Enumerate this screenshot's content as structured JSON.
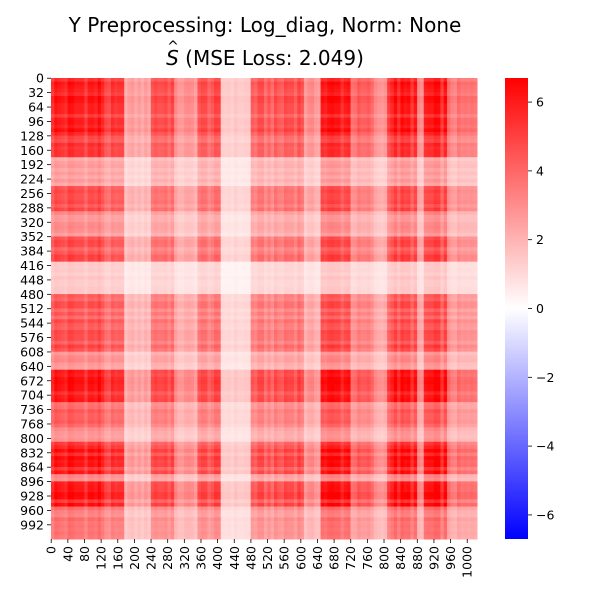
{
  "chart_data": {
    "type": "heatmap",
    "title": "Y Preprocessing: Log_diag, Norm: None",
    "subtitle_symbol": "S",
    "subtitle_rest": " (MSE Loss: 2.049)",
    "n": 1024,
    "y_ticks": [
      "0",
      "32",
      "64",
      "96",
      "128",
      "160",
      "192",
      "224",
      "256",
      "288",
      "320",
      "352",
      "384",
      "416",
      "448",
      "480",
      "512",
      "544",
      "576",
      "608",
      "640",
      "672",
      "704",
      "736",
      "768",
      "800",
      "832",
      "864",
      "896",
      "928",
      "960",
      "992"
    ],
    "x_ticks": [
      "0",
      "40",
      "80",
      "120",
      "160",
      "200",
      "240",
      "280",
      "320",
      "360",
      "400",
      "440",
      "480",
      "520",
      "560",
      "600",
      "640",
      "680",
      "720",
      "760",
      "800",
      "840",
      "880",
      "920",
      "960",
      "1000"
    ],
    "colorbar": {
      "ticks": [
        "6",
        "4",
        "2",
        "0",
        "−2",
        "−4",
        "−6"
      ],
      "vmin": -6.7,
      "vmax": 6.7,
      "colormap": "bwr",
      "low_color": "#0000ff",
      "mid_color": "#ffffff",
      "high_color": "#ff0000"
    },
    "band_profile": [
      {
        "from": 0,
        "to": 1,
        "v": 0.0
      },
      {
        "from": 1,
        "to": 128,
        "v": 0.85
      },
      {
        "from": 128,
        "to": 180,
        "v": 0.6
      },
      {
        "from": 180,
        "to": 240,
        "v": 0.15
      },
      {
        "from": 240,
        "to": 300,
        "v": 0.55
      },
      {
        "from": 300,
        "to": 350,
        "v": 0.2
      },
      {
        "from": 350,
        "to": 410,
        "v": 0.5
      },
      {
        "from": 410,
        "to": 480,
        "v": 0.05
      },
      {
        "from": 480,
        "to": 560,
        "v": 0.45
      },
      {
        "from": 560,
        "to": 610,
        "v": 0.55
      },
      {
        "from": 610,
        "to": 650,
        "v": 0.2
      },
      {
        "from": 650,
        "to": 720,
        "v": 0.9
      },
      {
        "from": 720,
        "to": 780,
        "v": 0.4
      },
      {
        "from": 780,
        "to": 810,
        "v": 0.2
      },
      {
        "from": 810,
        "to": 880,
        "v": 0.85
      },
      {
        "from": 880,
        "to": 900,
        "v": 0.2
      },
      {
        "from": 900,
        "to": 950,
        "v": 0.85
      },
      {
        "from": 950,
        "to": 1024,
        "v": 0.3
      }
    ]
  }
}
